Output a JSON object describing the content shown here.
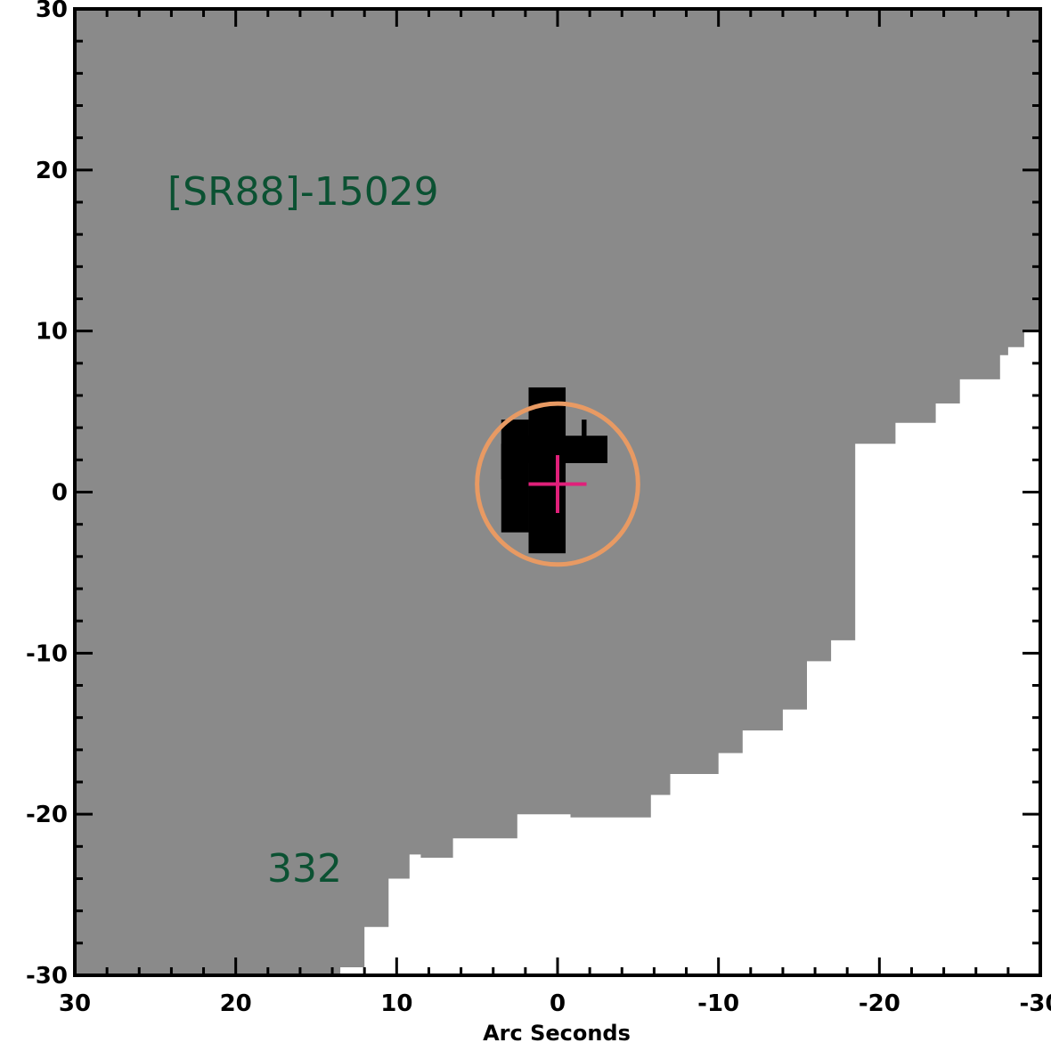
{
  "chart_data": {
    "type": "image",
    "xlabel": "Arc Seconds",
    "ylabel": "",
    "xlim": [
      30,
      -30
    ],
    "ylim": [
      -30,
      30
    ],
    "xticks": [
      "30",
      "20",
      "10",
      "0",
      "-10",
      "-20",
      "-30"
    ],
    "yticks": [
      "30",
      "20",
      "10",
      "0",
      "-10",
      "-20",
      "-30"
    ],
    "xtick_values": [
      30,
      20,
      10,
      0,
      -10,
      -20,
      -30
    ],
    "ytick_values": [
      30,
      20,
      10,
      0,
      -10,
      -20,
      -30
    ],
    "source_label": "[SR88]-15029",
    "field_label": "332",
    "colors": {
      "coverage": "#8a8a8a",
      "no_data": "#ffffff",
      "source": "#000000",
      "aperture": "#e89a63",
      "crosshair": "#e0207a",
      "label_text": "#0b5132"
    },
    "aperture": {
      "center": [
        0,
        0.5
      ],
      "radius": 5
    },
    "crosshair": {
      "center": [
        0,
        0.5
      ],
      "arm": 1.8
    },
    "coverage_edge": [
      [
        -30,
        10
      ],
      [
        -29,
        10
      ],
      [
        -29,
        9
      ],
      [
        -28,
        9
      ],
      [
        -28,
        8.5
      ],
      [
        -27.5,
        8.5
      ],
      [
        -27.5,
        7
      ],
      [
        -25,
        7
      ],
      [
        -25,
        5.5
      ],
      [
        -23.5,
        5.5
      ],
      [
        -23.5,
        4.3
      ],
      [
        -21,
        4.3
      ],
      [
        -21,
        3
      ],
      [
        -18.5,
        3
      ],
      [
        -18.5,
        -9.2
      ],
      [
        -17,
        -9.2
      ],
      [
        -17,
        -10.5
      ],
      [
        -15.5,
        -10.5
      ],
      [
        -15.5,
        -13.5
      ],
      [
        -14,
        -13.5
      ],
      [
        -14,
        -14.8
      ],
      [
        -11.5,
        -14.8
      ],
      [
        -11.5,
        -16.2
      ],
      [
        -10,
        -16.2
      ],
      [
        -10,
        -17.5
      ],
      [
        -7,
        -17.5
      ],
      [
        -7,
        -18.8
      ],
      [
        -5.8,
        -18.8
      ],
      [
        -5.8,
        -20.2
      ],
      [
        -0.8,
        -20.2
      ],
      [
        -0.8,
        -20
      ],
      [
        2.5,
        -20
      ],
      [
        2.5,
        -21.5
      ],
      [
        6.5,
        -21.5
      ],
      [
        6.5,
        -22.7
      ],
      [
        8.5,
        -22.7
      ],
      [
        8.5,
        -22.5
      ],
      [
        9.2,
        -22.5
      ],
      [
        9.2,
        -24
      ],
      [
        10.5,
        -24
      ],
      [
        10.5,
        -27
      ],
      [
        12,
        -27
      ],
      [
        12,
        -29.5
      ],
      [
        13.5,
        -29.5
      ],
      [
        13.5,
        -30
      ]
    ],
    "source_pixels": [
      [
        -1.8,
        4.5,
        -1.5,
        3.0
      ],
      [
        -3.1,
        1.8,
        2.0,
        3.5
      ],
      [
        2.0,
        0.8,
        3.5,
        3.0
      ],
      [
        3.5,
        -2.5,
        1.8,
        4.5
      ],
      [
        1.8,
        -3.8,
        -0.5,
        6.5
      ]
    ]
  }
}
